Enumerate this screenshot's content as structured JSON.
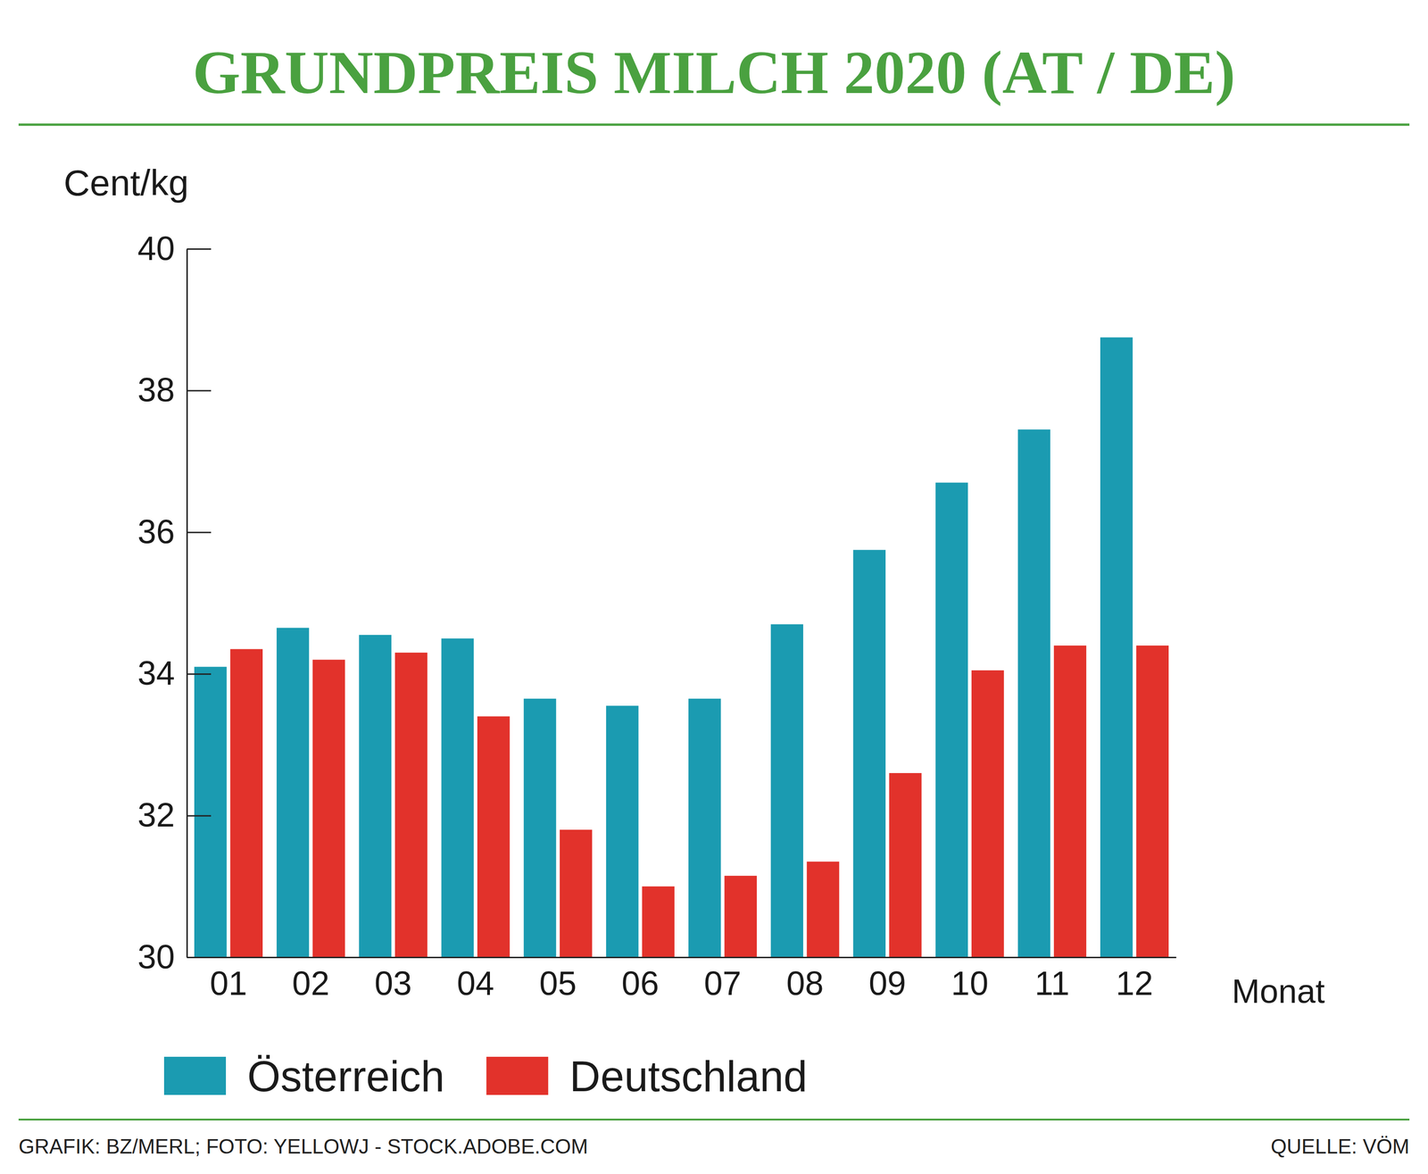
{
  "chart_data": {
    "type": "bar",
    "title": "GRUNDPREIS MILCH 2020 (AT / DE)",
    "y_label": "Cent/kg",
    "x_label": "Monat",
    "categories": [
      "01",
      "02",
      "03",
      "04",
      "05",
      "06",
      "07",
      "08",
      "09",
      "10",
      "11",
      "12"
    ],
    "series": [
      {
        "name": "Österreich",
        "color": "#1b9bb1",
        "values": [
          34.1,
          34.65,
          34.55,
          34.5,
          33.65,
          33.55,
          33.65,
          34.7,
          35.75,
          36.7,
          37.45,
          38.75
        ]
      },
      {
        "name": "Deutschland",
        "color": "#e2322b",
        "values": [
          34.35,
          34.2,
          34.3,
          33.4,
          31.8,
          31.0,
          31.15,
          31.35,
          32.6,
          34.05,
          34.4,
          34.4
        ]
      }
    ],
    "ylim": [
      30,
      40
    ],
    "yticks": [
      30,
      32,
      34,
      36,
      38,
      40
    ],
    "legend": "bottom",
    "credit": "GRAFIK: BZ/MERL; FOTO: YELLOWJ - STOCK.ADOBE.COM",
    "source": "QUELLE: VÖM"
  }
}
